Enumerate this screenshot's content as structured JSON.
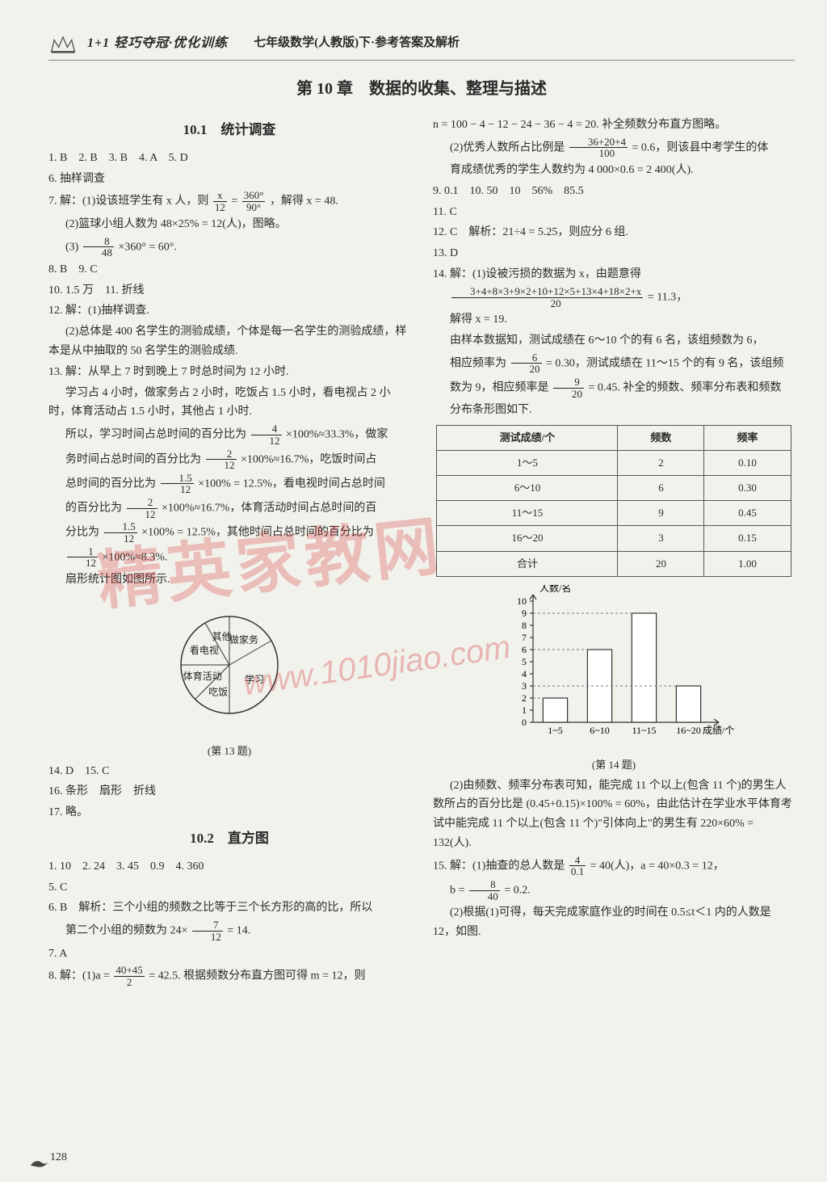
{
  "header": {
    "brand": "1+1 轻巧夺冠·优化训练",
    "subject": "七年级数学(人教版)下·参考答案及解析"
  },
  "chapter_title": "第 10 章　数据的收集、整理与描述",
  "page_number": "128",
  "watermark_main": "精英家教网",
  "watermark_url": "www.1010jiao.com",
  "left": {
    "section1_title": "10.1　统计调查",
    "l1": "1. B　2. B　3. B　4. A　5. D",
    "l2": "6. 抽样调查",
    "l3a": "7. 解：(1)设该班学生有 x 人，则",
    "l3b": "，解得 x = 48.",
    "l4": "(2)篮球小组人数为 48×25% = 12(人)，图略。",
    "l5a": "(3)",
    "l5b": "×360° = 60°.",
    "l6": "8. B　9. C",
    "l7": "10. 1.5 万　11. 折线",
    "l8": "12. 解：(1)抽样调查.",
    "l9": "(2)总体是 400 名学生的测验成绩，个体是每一名学生的测验成绩，样本是从中抽取的 50 名学生的测验成绩.",
    "l10": "13. 解：从早上 7 时到晚上 7 时总时间为 12 小时.",
    "l11": "学习占 4 小时，做家务占 2 小时，吃饭占 1.5 小时，看电视占 2 小时，体育活动占 1.5 小时，其他占 1 小时.",
    "l12a": "所以，学习时间占总时间的百分比为",
    "l12b": "×100%≈33.3%，做家",
    "l13a": "务时间占总时间的百分比为",
    "l13b": "×100%≈16.7%，吃饭时间占",
    "l14a": "总时间的百分比为",
    "l14b": "×100% = 12.5%，看电视时间占总时间",
    "l15a": "的百分比为",
    "l15b": "×100%≈16.7%，体育活动时间占总时间的百",
    "l16a": "分比为",
    "l16b": "×100% = 12.5%，其他时间占总时间的百分比为",
    "l17a": "",
    "l17b": "×100%≈8.3%.",
    "l18": "扇形统计图如图所示.",
    "pie": {
      "labels": [
        "做家务",
        "学习",
        "吃饭",
        "体育活动",
        "看电视",
        "其他"
      ],
      "angles": [
        60,
        120,
        45,
        45,
        60,
        30
      ],
      "colors": [
        "#ffffff",
        "#ffffff",
        "#ffffff",
        "#ffffff",
        "#ffffff",
        "#ffffff"
      ],
      "stroke": "#333333",
      "font_size": 12
    },
    "pie_caption": "(第 13 题)",
    "l19": "14. D　15. C",
    "l20": "16. 条形　扇形　折线",
    "l21": "17. 略。",
    "section2_title": "10.2　直方图",
    "s1": "1. 10　2. 24　3. 45　0.9　4. 360",
    "s2": "5. C",
    "s3": "6. B　解析：三个小组的频数之比等于三个长方形的高的比，所以",
    "s3b_a": "第二个小组的频数为 24×",
    "s3b_b": " = 14.",
    "s4": "7. A",
    "s5a": "8. 解：(1)a =",
    "s5b": " = 42.5. 根据频数分布直方图可得 m = 12，则"
  },
  "right": {
    "r1": "n = 100 − 4 − 12 − 24 − 36 − 4 = 20. 补全频数分布直方图略。",
    "r2a": "(2)优秀人数所占比例是",
    "r2b": " = 0.6，则该县中考学生的体",
    "r3": "育成绩优秀的学生人数约为 4 000×0.6 = 2 400(人).",
    "r4": "9. 0.1　10. 50　10　56%　85.5",
    "r5": "11. C",
    "r6": "12. C　解析：21÷4 = 5.25，则应分 6 组.",
    "r7": "13. D",
    "r8": "14. 解：(1)设被污损的数据为 x，由题意得",
    "r9_suffix": " = 11.3，",
    "r10": "解得 x = 19.",
    "r11": "由样本数据知，测试成绩在 6～10 个的有 6 名，该组频数为 6，",
    "r12a": "相应频率为",
    "r12b": " = 0.30，测试成绩在 11～15 个的有 9 名，该组频",
    "r13a": "数为 9，相应频率是",
    "r13b": " = 0.45. 补全的频数、频率分布表和频数",
    "r14": "分布条形图如下.",
    "table": {
      "columns": [
        "测试成绩/个",
        "频数",
        "频率"
      ],
      "rows": [
        [
          "1～5",
          "2",
          "0.10"
        ],
        [
          "6～10",
          "6",
          "0.30"
        ],
        [
          "11～15",
          "9",
          "0.45"
        ],
        [
          "16～20",
          "3",
          "0.15"
        ],
        [
          "合计",
          "20",
          "1.00"
        ]
      ],
      "border_color": "#555555",
      "font_size": 13
    },
    "histogram": {
      "type": "bar",
      "x_labels": [
        "1~5",
        "6~10",
        "11~15",
        "16~20"
      ],
      "values": [
        2,
        6,
        9,
        3
      ],
      "y_ticks": [
        0,
        1,
        2,
        3,
        4,
        5,
        6,
        7,
        8,
        9,
        10
      ],
      "ylim": [
        0,
        10
      ],
      "bar_fill": "#ffffff",
      "bar_stroke": "#333333",
      "axis_color": "#333333",
      "x_axis_label": "成绩/个",
      "y_axis_label": "人数/名",
      "font_size": 12,
      "bar_width": 0.55
    },
    "histo_caption": "(第 14 题)",
    "r15": "(2)由频数、频率分布表可知，能完成 11 个以上(包含 11 个)的男生人数所占的百分比是 (0.45+0.15)×100% = 60%，由此估计在学业水平体育考试中能完成 11 个以上(包含 11 个)\"引体向上\"的男生有 220×60% = 132(人).",
    "r16a": "15. 解：(1)抽查的总人数是",
    "r16b": " = 40(人)，a = 40×0.3 = 12，",
    "r17a": "b =",
    "r17b": " = 0.2.",
    "r18": "(2)根据(1)可得，每天完成家庭作业的时间在 0.5≤t＜1 内的人数是 12，如图."
  },
  "fractions": {
    "f_x12": {
      "num": "x",
      "den": "12"
    },
    "f_360_90": {
      "num": "360°",
      "den": "90°"
    },
    "f_8_48": {
      "num": "8",
      "den": "48"
    },
    "f_4_12": {
      "num": "4",
      "den": "12"
    },
    "f_2_12": {
      "num": "2",
      "den": "12"
    },
    "f_15_12": {
      "num": "1.5",
      "den": "12"
    },
    "f_1_12": {
      "num": "1",
      "den": "12"
    },
    "f_7_12": {
      "num": "7",
      "den": "12"
    },
    "f_4045_2": {
      "num": "40+45",
      "den": "2"
    },
    "f_362004_100": {
      "num": "36+20+4",
      "den": "100"
    },
    "f_6_20": {
      "num": "6",
      "den": "20"
    },
    "f_9_20": {
      "num": "9",
      "den": "20"
    },
    "f_4_01": {
      "num": "4",
      "den": "0.1"
    },
    "f_8_40": {
      "num": "8",
      "den": "40"
    },
    "f_longsum": {
      "num": "3+4+8×3+9×2+10+12×5+13×4+18×2+x",
      "den": "20"
    }
  }
}
